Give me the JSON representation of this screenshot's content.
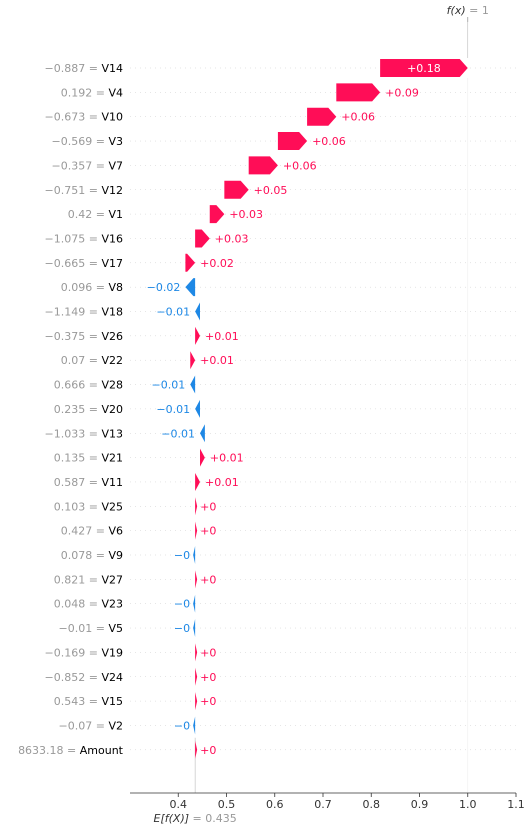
{
  "chart_data": {
    "type": "waterfall",
    "base_value": 0.435,
    "output_value": 1,
    "base_label": {
      "prefix": "E[f(X)]",
      "value": "= 0.435"
    },
    "output_label": {
      "prefix": "f(x)",
      "value": "= 1"
    },
    "xlim": [
      0.3,
      1.1
    ],
    "xticks": [
      "0.4",
      "0.5",
      "0.6",
      "0.7",
      "0.8",
      "0.9",
      "1.0",
      "1.1"
    ],
    "colors": {
      "positive": "#ff0d57",
      "negative": "#1e88e5",
      "muted": "#999999"
    },
    "features": [
      {
        "value": "−0.887",
        "name": "V14",
        "shap": 0.18,
        "label": "+0.18"
      },
      {
        "value": "0.192",
        "name": "V4",
        "shap": 0.09,
        "label": "+0.09"
      },
      {
        "value": "−0.673",
        "name": "V10",
        "shap": 0.06,
        "label": "+0.06"
      },
      {
        "value": "−0.569",
        "name": "V3",
        "shap": 0.06,
        "label": "+0.06"
      },
      {
        "value": "−0.357",
        "name": "V7",
        "shap": 0.06,
        "label": "+0.06"
      },
      {
        "value": "−0.751",
        "name": "V12",
        "shap": 0.05,
        "label": "+0.05"
      },
      {
        "value": "0.42",
        "name": "V1",
        "shap": 0.03,
        "label": "+0.03"
      },
      {
        "value": "−1.075",
        "name": "V16",
        "shap": 0.03,
        "label": "+0.03"
      },
      {
        "value": "−0.665",
        "name": "V17",
        "shap": 0.02,
        "label": "+0.02"
      },
      {
        "value": "0.096",
        "name": "V8",
        "shap": -0.02,
        "label": "−0.02"
      },
      {
        "value": "−1.149",
        "name": "V18",
        "shap": -0.01,
        "label": "−0.01"
      },
      {
        "value": "−0.375",
        "name": "V26",
        "shap": 0.01,
        "label": "+0.01"
      },
      {
        "value": "0.07",
        "name": "V22",
        "shap": 0.01,
        "label": "+0.01"
      },
      {
        "value": "0.666",
        "name": "V28",
        "shap": -0.01,
        "label": "−0.01"
      },
      {
        "value": "0.235",
        "name": "V20",
        "shap": -0.01,
        "label": "−0.01"
      },
      {
        "value": "−1.033",
        "name": "V13",
        "shap": -0.01,
        "label": "−0.01"
      },
      {
        "value": "0.135",
        "name": "V21",
        "shap": 0.01,
        "label": "+0.01"
      },
      {
        "value": "0.587",
        "name": "V11",
        "shap": 0.01,
        "label": "+0.01"
      },
      {
        "value": "0.103",
        "name": "V25",
        "shap": 0.0,
        "label": "+0"
      },
      {
        "value": "0.427",
        "name": "V6",
        "shap": 0.0,
        "label": "+0"
      },
      {
        "value": "0.078",
        "name": "V9",
        "shap": -0.0,
        "label": "−0"
      },
      {
        "value": "0.821",
        "name": "V27",
        "shap": 0.0,
        "label": "+0"
      },
      {
        "value": "0.048",
        "name": "V23",
        "shap": -0.0,
        "label": "−0"
      },
      {
        "value": "−0.01",
        "name": "V5",
        "shap": -0.0,
        "label": "−0"
      },
      {
        "value": "−0.169",
        "name": "V19",
        "shap": 0.0,
        "label": "+0"
      },
      {
        "value": "−0.852",
        "name": "V24",
        "shap": 0.0,
        "label": "+0"
      },
      {
        "value": "0.543",
        "name": "V15",
        "shap": 0.0,
        "label": "+0"
      },
      {
        "value": "−0.07",
        "name": "V2",
        "shap": -0.0,
        "label": "−0"
      },
      {
        "value": "8633.18",
        "name": "Amount",
        "shap": 0.0,
        "label": "+0"
      }
    ]
  }
}
